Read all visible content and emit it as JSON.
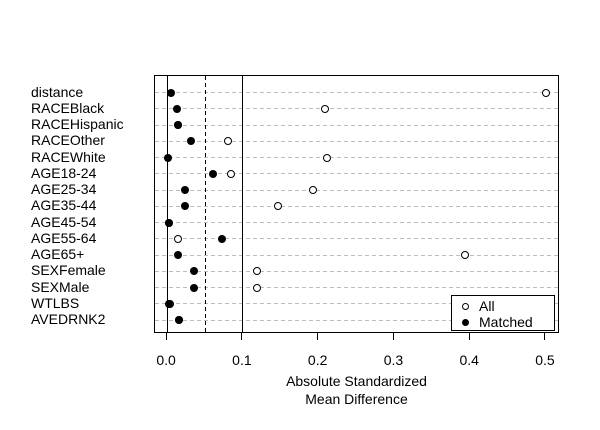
{
  "chart_data": {
    "type": "scatter",
    "title": "",
    "xlabel_line1": "Absolute Standardized",
    "xlabel_line2": "Mean Difference",
    "categories": [
      "distance",
      "RACEBlack",
      "RACEHispanic",
      "RACEOther",
      "RACEWhite",
      "AGE18-24",
      "AGE25-34",
      "AGE35-44",
      "AGE45-54",
      "AGE55-64",
      "AGE65+",
      "SEXFemale",
      "SEXMale",
      "WTLBS",
      "AVEDRNK2"
    ],
    "series": [
      {
        "name": "All",
        "marker": "open-circle",
        "values": [
          0.5,
          0.209,
          0.015,
          0.08,
          0.211,
          0.084,
          0.192,
          0.146,
          0.003,
          0.015,
          0.393,
          0.119,
          0.119,
          0.004,
          0.016
        ]
      },
      {
        "name": "Matched",
        "marker": "filled-circle",
        "values": [
          0.005,
          0.013,
          0.015,
          0.031,
          0.001,
          0.061,
          0.024,
          0.024,
          0.003,
          0.073,
          0.014,
          0.036,
          0.036,
          0.002,
          0.016
        ]
      }
    ],
    "x_ticks": [
      {
        "label": "0.0",
        "value": 0.0
      },
      {
        "label": "0.1",
        "value": 0.1
      },
      {
        "label": "0.2",
        "value": 0.2
      },
      {
        "label": "0.3",
        "value": 0.3
      },
      {
        "label": "0.4",
        "value": 0.4
      },
      {
        "label": "0.5",
        "value": 0.5
      }
    ],
    "xlim": [
      -0.016,
      0.5185
    ],
    "ref_lines": [
      {
        "value": 0.0,
        "style": "solid"
      },
      {
        "value": 0.05,
        "style": "dashed"
      },
      {
        "value": 0.1,
        "style": "solid"
      }
    ],
    "grid": "horizontal-dashed",
    "legend_position": "bottom-right",
    "colors": {
      "marker": "#000000",
      "grid": "#bdbdbd",
      "box": "#000000",
      "background": "#ffffff"
    }
  }
}
